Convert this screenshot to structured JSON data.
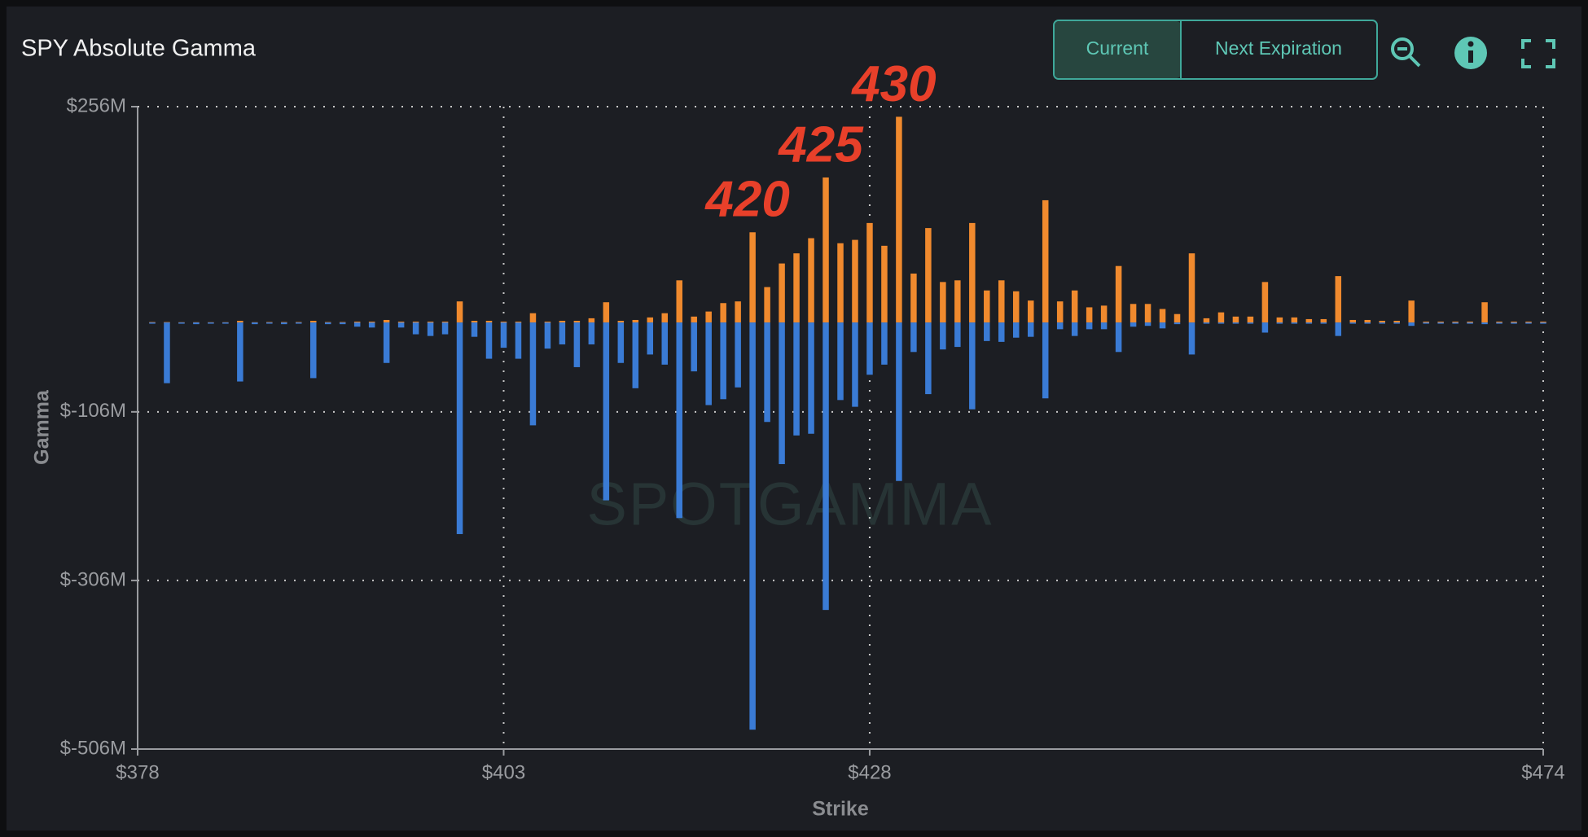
{
  "chart_data": {
    "type": "bar",
    "title": "SPY Absolute Gamma",
    "buttons": [
      "Current",
      "Next Expiration"
    ],
    "watermark": "SPOTGAMMA",
    "xlabel": "Strike",
    "ylabel": "Gamma",
    "xlim": [
      378,
      474
    ],
    "xticks": [
      {
        "value": 378,
        "label": "$378"
      },
      {
        "value": 403,
        "label": "$403"
      },
      {
        "value": 428,
        "label": "$428"
      },
      {
        "value": 474,
        "label": "$474"
      }
    ],
    "ylim": [
      -506,
      256
    ],
    "yticks": [
      {
        "value": 256,
        "label": "$256M"
      },
      {
        "value": -106,
        "label": "$-106M"
      },
      {
        "value": -306,
        "label": "$-306M"
      },
      {
        "value": -506,
        "label": "$-506M"
      }
    ],
    "grid": true,
    "annotations": [
      {
        "text": "420",
        "x": 420
      },
      {
        "text": "425",
        "x": 425
      },
      {
        "text": "430",
        "x": 430
      }
    ],
    "x": [
      379,
      380,
      381,
      382,
      383,
      384,
      385,
      386,
      387,
      388,
      389,
      390,
      391,
      392,
      393,
      394,
      395,
      396,
      397,
      398,
      399,
      400,
      401,
      402,
      403,
      404,
      405,
      406,
      407,
      408,
      409,
      410,
      411,
      412,
      413,
      414,
      415,
      416,
      417,
      418,
      419,
      420,
      421,
      422,
      423,
      424,
      425,
      426,
      427,
      428,
      429,
      430,
      431,
      432,
      433,
      434,
      435,
      436,
      437,
      438,
      439,
      440,
      441,
      442,
      443,
      444,
      445,
      446,
      447,
      448,
      449,
      450,
      451,
      452,
      453,
      454,
      455,
      456,
      457,
      458,
      459,
      460,
      461,
      462,
      463,
      464,
      465,
      466,
      467,
      468,
      469,
      470,
      471,
      472,
      473,
      474
    ],
    "series": [
      {
        "color": "#f08a2e",
        "values": [
          0.5,
          0.5,
          0.3,
          0.3,
          0.3,
          0.3,
          2,
          0.3,
          0.5,
          0.5,
          0.5,
          2,
          0.5,
          0.5,
          1,
          1,
          3,
          1,
          1,
          1,
          1,
          25,
          2,
          2,
          1,
          1,
          11,
          1,
          2,
          2,
          5,
          24,
          2,
          3,
          6,
          11,
          50,
          7,
          13,
          23,
          25,
          107,
          42,
          70,
          82,
          100,
          172,
          94,
          98,
          118,
          91,
          244,
          58,
          112,
          48,
          50,
          118,
          38,
          50,
          37,
          26,
          145,
          25,
          38,
          18,
          20,
          67,
          22,
          22,
          16,
          10,
          82,
          5,
          12,
          7,
          7,
          48,
          6,
          6,
          4,
          4,
          55,
          3,
          3,
          2,
          2,
          26,
          1,
          1,
          1,
          1,
          24,
          1,
          1,
          1,
          1
        ]
      },
      {
        "color": "#3a7bd5",
        "values": [
          -1,
          -72,
          -1,
          -2,
          -1,
          -1,
          -70,
          -2,
          -1,
          -2,
          -1,
          -66,
          -2,
          -2,
          -5,
          -6,
          -48,
          -6,
          -14,
          -16,
          -14,
          -251,
          -17,
          -43,
          -30,
          -43,
          -122,
          -31,
          -26,
          -53,
          -26,
          -211,
          -48,
          -78,
          -38,
          -50,
          -232,
          -58,
          -98,
          -91,
          -77,
          -483,
          -118,
          -168,
          -134,
          -132,
          -341,
          -92,
          -100,
          -62,
          -50,
          -188,
          -35,
          -85,
          -32,
          -29,
          -103,
          -22,
          -23,
          -18,
          -17,
          -90,
          -8,
          -16,
          -8,
          -8,
          -35,
          -5,
          -4,
          -7,
          -2,
          -38,
          -1,
          -1,
          -1,
          -1,
          -12,
          -1,
          -1,
          -1,
          -1,
          -16,
          -1,
          -1,
          -1,
          -1,
          -4,
          -1,
          -0.5,
          -0.5,
          -0.5,
          -2,
          -0.5,
          -0.5,
          -0.5,
          -0.5
        ]
      }
    ]
  }
}
